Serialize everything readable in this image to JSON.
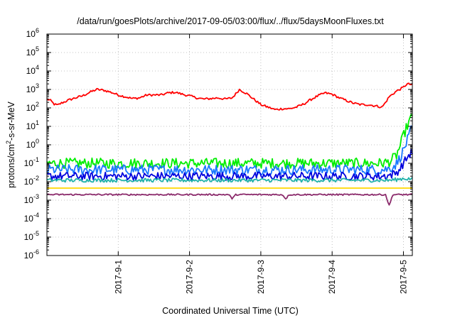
{
  "chart_data": {
    "type": "line",
    "title": "/data/run/goesPlots/archive/2017-09-05/03:00/flux/../flux/5daysMoonFluxes.txt",
    "xlabel": "Coordinated Universal Time (UTC)",
    "ylabel": {
      "prefix": "protons/cm",
      "sup": "2",
      "suffix": "-s-sr-MeV"
    },
    "yscale": "log",
    "ylim_exponent": [
      -6,
      6
    ],
    "y_tick_exponents": [
      -6,
      -5,
      -4,
      -3,
      -2,
      -1,
      0,
      1,
      2,
      3,
      4,
      5,
      6
    ],
    "xlim_days": [
      "2017-08-31 00:00",
      "2017-09-05 03:00"
    ],
    "x_ticks": [
      "2017-9-1",
      "2017-9-2",
      "2017-9-3",
      "2017-9-4",
      "2017-9-5"
    ],
    "grid": true,
    "series": [
      {
        "color": "#ff0000",
        "x": [
          0,
          0.05,
          0.1,
          0.15,
          0.2,
          0.3,
          0.4,
          0.5,
          0.6,
          0.7,
          0.8,
          0.9,
          1.0,
          1.1,
          1.2,
          1.3,
          1.4,
          1.5,
          1.6,
          1.7,
          1.8,
          1.9,
          2.0,
          2.1,
          2.2,
          2.3,
          2.4,
          2.5,
          2.6,
          2.7,
          2.8,
          2.9,
          3.0,
          3.1,
          3.2,
          3.3,
          3.4,
          3.5,
          3.6,
          3.7,
          3.8,
          3.9,
          4.0,
          4.1,
          4.2,
          4.3,
          4.4,
          4.5,
          4.6,
          4.7,
          4.75,
          4.8,
          4.9,
          5.0,
          5.05,
          5.125
        ],
        "values": [
          300,
          250,
          160,
          140,
          180,
          260,
          350,
          450,
          700,
          1000,
          900,
          700,
          500,
          400,
          320,
          350,
          500,
          500,
          500,
          650,
          700,
          550,
          450,
          350,
          300,
          320,
          350,
          300,
          350,
          1000,
          600,
          300,
          150,
          110,
          80,
          90,
          90,
          110,
          160,
          280,
          450,
          650,
          550,
          350,
          250,
          180,
          150,
          150,
          130,
          110,
          200,
          400,
          800,
          1300,
          2000,
          1800
        ]
      },
      {
        "color": "#00ee00",
        "x": [
          0,
          0.5,
          1.0,
          1.5,
          2.0,
          2.5,
          3.0,
          3.5,
          4.0,
          4.5,
          4.7,
          4.8,
          4.9,
          4.95,
          5.0,
          5.05,
          5.1,
          5.125
        ],
        "values": [
          0.1,
          0.1,
          0.1,
          0.1,
          0.1,
          0.1,
          0.1,
          0.1,
          0.1,
          0.1,
          0.1,
          0.12,
          0.25,
          0.8,
          3,
          10,
          25,
          30
        ]
      },
      {
        "color": "#1a78ff",
        "x": [
          0,
          0.5,
          1.0,
          1.5,
          2.0,
          2.5,
          3.0,
          3.5,
          4.0,
          4.5,
          4.7,
          4.8,
          4.9,
          4.95,
          5.0,
          5.05,
          5.1,
          5.125
        ],
        "values": [
          0.045,
          0.045,
          0.045,
          0.045,
          0.045,
          0.045,
          0.045,
          0.045,
          0.045,
          0.045,
          0.045,
          0.05,
          0.09,
          0.2,
          0.5,
          1.5,
          5,
          8
        ]
      },
      {
        "color": "#0000dd",
        "x": [
          0,
          0.5,
          1.0,
          1.5,
          2.0,
          2.5,
          3.0,
          3.5,
          4.0,
          4.5,
          4.7,
          4.8,
          4.9,
          4.95,
          5.0,
          5.05,
          5.1,
          5.125
        ],
        "values": [
          0.02,
          0.02,
          0.02,
          0.02,
          0.02,
          0.02,
          0.02,
          0.02,
          0.02,
          0.02,
          0.02,
          0.022,
          0.03,
          0.05,
          0.1,
          0.2,
          0.35,
          0.4
        ]
      },
      {
        "color": "#20b2aa",
        "x": [
          0,
          1.0,
          2.0,
          3.0,
          4.0,
          4.8,
          4.9,
          5.0,
          5.125
        ],
        "values": [
          0.012,
          0.012,
          0.012,
          0.012,
          0.012,
          0.012,
          0.013,
          0.015,
          0.014
        ]
      },
      {
        "color": "#ffd700",
        "x": [
          0,
          1.0,
          2.0,
          3.0,
          4.0,
          5.0,
          5.125
        ],
        "values": [
          0.0045,
          0.0045,
          0.0045,
          0.0045,
          0.0045,
          0.0045,
          0.0045
        ]
      },
      {
        "color": "#8b2a6b",
        "x": [
          0,
          1.0,
          2.0,
          2.55,
          2.6,
          2.65,
          3.3,
          3.35,
          3.4,
          4.75,
          4.8,
          4.85,
          5.0,
          5.125
        ],
        "values": [
          0.002,
          0.002,
          0.002,
          0.002,
          0.0012,
          0.002,
          0.002,
          0.0012,
          0.002,
          0.002,
          0.0005,
          0.002,
          0.002,
          0.002
        ]
      }
    ]
  }
}
